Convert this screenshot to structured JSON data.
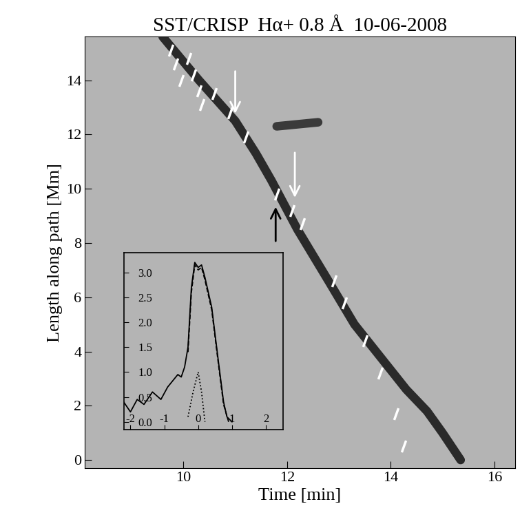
{
  "chart_data": {
    "type": "space-time diagram",
    "title": "SST/CRISP  Hα+ 0.8 Å  10-06-2008",
    "x_label": "Time [min]",
    "y_label": "Length along path [Mm]",
    "xlim": [
      8.1,
      16.4
    ],
    "xticks": [
      10,
      12,
      14,
      16
    ],
    "ylim": [
      -0.3,
      15.6
    ],
    "yticks": [
      0,
      2,
      4,
      6,
      8,
      10,
      12,
      14
    ],
    "background_color": "#b4b4b4",
    "series": [
      {
        "type": "line",
        "color": "#2a2a2a",
        "x": [
          9.6,
          10.3,
          11.0,
          11.4,
          11.7,
          12.2,
          12.8,
          13.3,
          13.8,
          14.3,
          14.7,
          15.0,
          15.35
        ],
        "values": [
          15.6,
          14.0,
          12.5,
          11.3,
          10.3,
          8.5,
          6.6,
          5.0,
          3.8,
          2.6,
          1.8,
          1.0,
          0.0
        ]
      },
      {
        "type": "line",
        "color": "#3a3a3a",
        "x": [
          11.8,
          12.6
        ],
        "values": [
          12.3,
          12.45
        ]
      },
      {
        "type": "scatter",
        "marker": "dash",
        "color": "#ffffff",
        "x": [
          9.75,
          9.85,
          9.95,
          10.1,
          10.2,
          10.3,
          10.35,
          10.6,
          10.9,
          11.2,
          11.8,
          12.1,
          12.3,
          12.9,
          13.1,
          13.5,
          13.8,
          14.1,
          14.25
        ],
        "values": [
          15.1,
          14.6,
          14.0,
          14.8,
          14.2,
          13.6,
          13.1,
          13.5,
          12.8,
          11.9,
          9.8,
          9.2,
          8.7,
          6.6,
          5.8,
          4.4,
          3.2,
          1.7,
          0.5
        ]
      }
    ],
    "arrows": [
      {
        "x": 11.0,
        "y_start": 14.4,
        "y_end": 12.7,
        "color": "#ffffff"
      },
      {
        "x": 12.15,
        "y_start": 11.4,
        "y_end": 9.6,
        "color": "#ffffff"
      },
      {
        "x": 11.78,
        "y_start": 8.0,
        "y_end": 9.4,
        "color": "#000000"
      }
    ],
    "inset": {
      "type": "line",
      "xlim": [
        -2.2,
        2.5
      ],
      "xticks": [
        -2,
        -1,
        0,
        1,
        2
      ],
      "ylim": [
        -0.15,
        3.4
      ],
      "yticks": [
        0.0,
        0.5,
        1.0,
        1.5,
        2.0,
        2.5,
        3.0
      ],
      "series": [
        {
          "line_style": "solid",
          "color": "#000000",
          "x": [
            -2.2,
            -2.0,
            -1.8,
            -1.6,
            -1.35,
            -1.1,
            -0.9,
            -0.6,
            -0.5,
            -0.4,
            -0.3,
            -0.2,
            -0.1,
            0.0,
            0.1,
            0.2,
            0.4,
            0.6,
            0.75,
            0.85,
            1.0
          ],
          "values": [
            0.4,
            0.2,
            0.45,
            0.35,
            0.6,
            0.45,
            0.7,
            0.95,
            0.9,
            1.1,
            1.5,
            2.7,
            3.2,
            3.1,
            3.15,
            2.9,
            2.3,
            1.2,
            0.4,
            0.1,
            0.0
          ]
        },
        {
          "line_style": "dashed",
          "color": "#000000",
          "x": [
            -0.3,
            -0.2,
            -0.1,
            0.0,
            0.1,
            0.2,
            0.4,
            0.6,
            0.75,
            0.9
          ],
          "values": [
            1.4,
            2.6,
            3.15,
            3.05,
            3.1,
            2.85,
            2.25,
            1.15,
            0.35,
            0.0
          ]
        },
        {
          "line_style": "dotted",
          "color": "#000000",
          "x": [
            -0.3,
            -0.15,
            0.0,
            0.1,
            0.2
          ],
          "values": [
            0.1,
            0.6,
            1.0,
            0.6,
            0.0
          ]
        }
      ]
    }
  }
}
